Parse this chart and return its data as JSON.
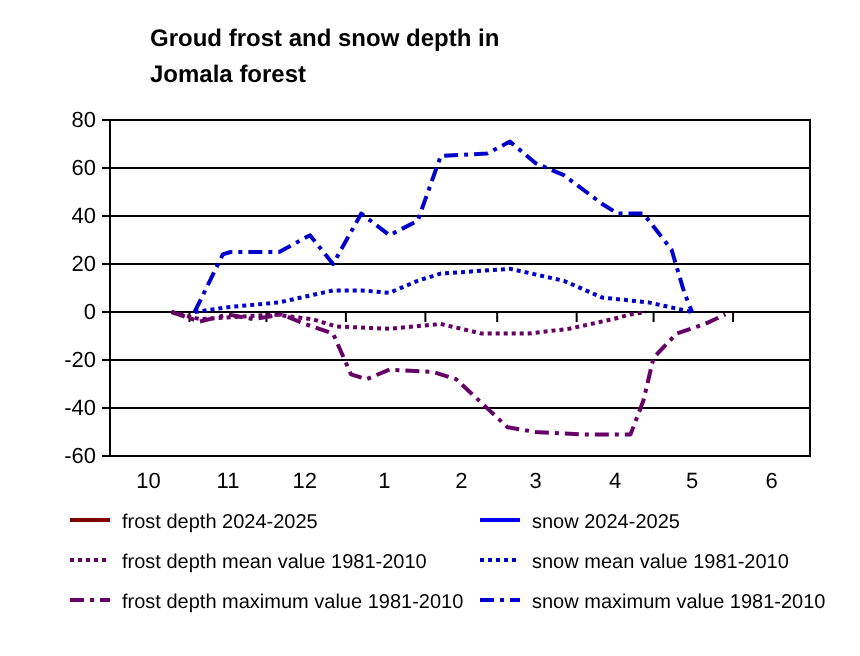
{
  "chart_data": {
    "type": "line",
    "title": "Groud frost and snow depth in Jomala forest",
    "xlim": [
      "2024-10-01",
      "2025-07-01"
    ],
    "xticks": [
      {
        "value": "2024-10-16",
        "label": "10"
      },
      {
        "value": "2024-11-16",
        "label": "11"
      },
      {
        "value": "2024-12-16",
        "label": "12"
      },
      {
        "value": "2025-01-16",
        "label": "1"
      },
      {
        "value": "2025-02-15",
        "label": "2"
      },
      {
        "value": "2025-03-16",
        "label": "3"
      },
      {
        "value": "2025-04-16",
        "label": "4"
      },
      {
        "value": "2025-05-16",
        "label": "5"
      },
      {
        "value": "2025-06-16",
        "label": "6"
      },
      {
        "value": "2024-11-01",
        "label": null
      },
      {
        "value": "2024-12-01",
        "label": null
      },
      {
        "value": "2025-01-01",
        "label": null
      },
      {
        "value": "2025-02-01",
        "label": null
      },
      {
        "value": "2025-03-01",
        "label": null
      },
      {
        "value": "2025-04-01",
        "label": null
      },
      {
        "value": "2025-05-01",
        "label": null
      },
      {
        "value": "2025-06-01",
        "label": null
      }
    ],
    "ylim": [
      -60,
      80
    ],
    "yticks": [
      -60,
      -40,
      -20,
      0,
      20,
      40,
      60,
      80
    ],
    "grid": "y",
    "legend": "bottom",
    "marker": "none",
    "series": [
      {
        "name": "frost depth 2024-2025",
        "color": "#800000",
        "line_style": "solid"
      },
      {
        "name": "snow 2024-2025",
        "color": "#0000ff",
        "line_style": "solid"
      },
      {
        "name": "frost depth mean value 1981-2010",
        "color": "#660066",
        "line_style": "dotted",
        "x": [
          "2024-10-25",
          "2024-11-05",
          "2024-12-04",
          "2024-12-19",
          "2024-12-28",
          "2025-01-18",
          "2025-02-07",
          "2025-02-23",
          "2025-03-13",
          "2025-03-29",
          "2025-04-15",
          "2025-04-22",
          "2025-04-28"
        ],
        "values": [
          0,
          -3,
          -1,
          -3,
          -6,
          -7,
          -5,
          -9,
          -9,
          -7,
          -3,
          -1,
          0
        ]
      },
      {
        "name": "snow mean value 1981-2010",
        "color": "#0000cc",
        "line_style": "dotted",
        "x": [
          "2024-11-03",
          "2024-11-16",
          "2024-12-06",
          "2024-12-27",
          "2025-01-07",
          "2025-01-18",
          "2025-01-29",
          "2025-02-07",
          "2025-03-06",
          "2025-03-27",
          "2025-04-11",
          "2025-04-29",
          "2025-05-16"
        ],
        "values": [
          0,
          2,
          4,
          9,
          9,
          8,
          13,
          16,
          18,
          13,
          6,
          4,
          0
        ]
      },
      {
        "name": "frost depth maximum value 1981-2010",
        "color": "#660066",
        "line_style": "dashed",
        "x": [
          "2024-10-25",
          "2024-11-05",
          "2024-11-16",
          "2024-11-26",
          "2024-12-07",
          "2024-12-16",
          "2024-12-27",
          "2025-01-03",
          "2025-01-09",
          "2025-01-18",
          "2025-02-04",
          "2025-02-13",
          "2025-02-26",
          "2025-03-05",
          "2025-03-16",
          "2025-04-04",
          "2025-04-22",
          "2025-04-27",
          "2025-05-01",
          "2025-05-10",
          "2025-05-21",
          "2025-05-29"
        ],
        "values": [
          0,
          -4,
          -1,
          -3,
          -1,
          -5,
          -9,
          -26,
          -28,
          -24,
          -25,
          -28,
          -41,
          -48,
          -50,
          -51,
          -51,
          -37,
          -19,
          -9,
          -5,
          -1
        ]
      },
      {
        "name": "snow maximum value 1981-2010",
        "color": "#0000cc",
        "line_style": "dashed",
        "x": [
          "2024-11-03",
          "2024-11-14",
          "2024-11-17",
          "2024-12-06",
          "2024-12-18",
          "2024-12-27",
          "2025-01-07",
          "2025-01-18",
          "2025-01-29",
          "2025-02-07",
          "2025-02-25",
          "2025-03-06",
          "2025-03-16",
          "2025-03-27",
          "2025-04-11",
          "2025-04-17",
          "2025-04-27",
          "2025-05-08",
          "2025-05-13",
          "2025-05-16"
        ],
        "values": [
          0,
          24,
          25,
          25,
          32,
          20,
          41,
          32,
          38,
          65,
          66,
          71,
          62,
          57,
          45,
          41,
          41,
          26,
          8,
          0
        ]
      }
    ]
  }
}
